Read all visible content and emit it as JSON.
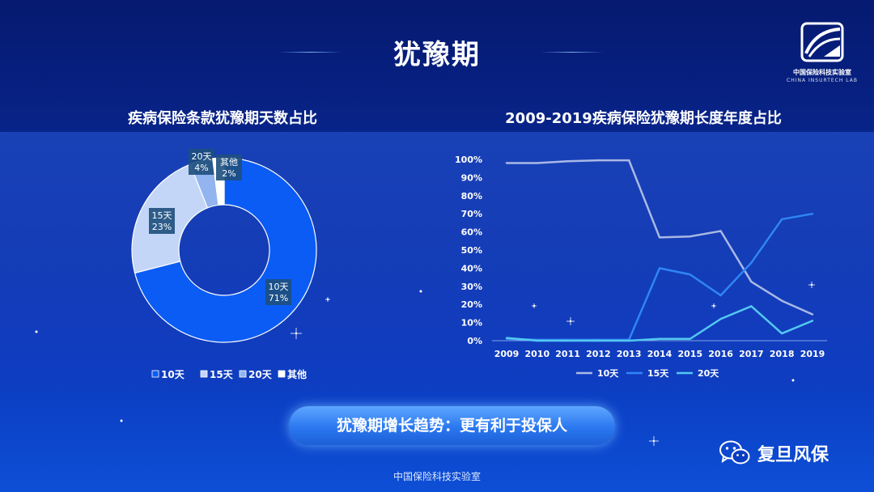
{
  "header": {
    "title": "犹豫期",
    "logo_text": "中国保险科技实验室",
    "logo_subtext": "CHINA INSURTECH LAB"
  },
  "chart_data": [
    {
      "type": "pie",
      "title": "疾病保险条款犹豫期天数占比",
      "donut": true,
      "slices": [
        {
          "label": "10天",
          "value": 71,
          "display": "71%",
          "color": "#0a5cf5"
        },
        {
          "label": "15天",
          "value": 23,
          "display": "23%",
          "color": "#c3d6f7"
        },
        {
          "label": "20天",
          "value": 4,
          "display": "4%",
          "color": "#92b4ef"
        },
        {
          "label": "其他",
          "value": 2,
          "display": "2%",
          "color": "#ffffff"
        }
      ],
      "legend": [
        "10天",
        "15天",
        "20天",
        "其他"
      ],
      "legend_position": "bottom"
    },
    {
      "type": "line",
      "title": "2009-2019疾病保险犹豫期长度年度占比",
      "x": [
        "2009",
        "2010",
        "2011",
        "2012",
        "2013",
        "2014",
        "2015",
        "2016",
        "2017",
        "2018",
        "2019"
      ],
      "y_ticks": [
        "0%",
        "10%",
        "20%",
        "30%",
        "40%",
        "50%",
        "60%",
        "70%",
        "80%",
        "90%",
        "100%"
      ],
      "ylim": [
        0,
        100
      ],
      "series": [
        {
          "name": "10天",
          "color": "#a9b8e6",
          "values": [
            98,
            98,
            99,
            99.5,
            99.5,
            57,
            57.5,
            60.5,
            32.5,
            22,
            14.5
          ]
        },
        {
          "name": "15天",
          "color": "#2f86f5",
          "values": [
            1,
            0.5,
            0.5,
            0.5,
            0.5,
            40,
            36.5,
            25,
            43,
            67,
            70
          ]
        },
        {
          "name": "20天",
          "color": "#54c8f2",
          "values": [
            1.5,
            0,
            0,
            0,
            0,
            1,
            1,
            12,
            19,
            4,
            11
          ]
        }
      ],
      "legend_position": "bottom",
      "grid": false
    }
  ],
  "callout": {
    "text": "犹豫期增长趋势：更有利于投保人"
  },
  "footer": {
    "text": "中国保险科技实验室"
  },
  "brand": {
    "icon": "wechat-icon",
    "text": "复旦风保"
  }
}
